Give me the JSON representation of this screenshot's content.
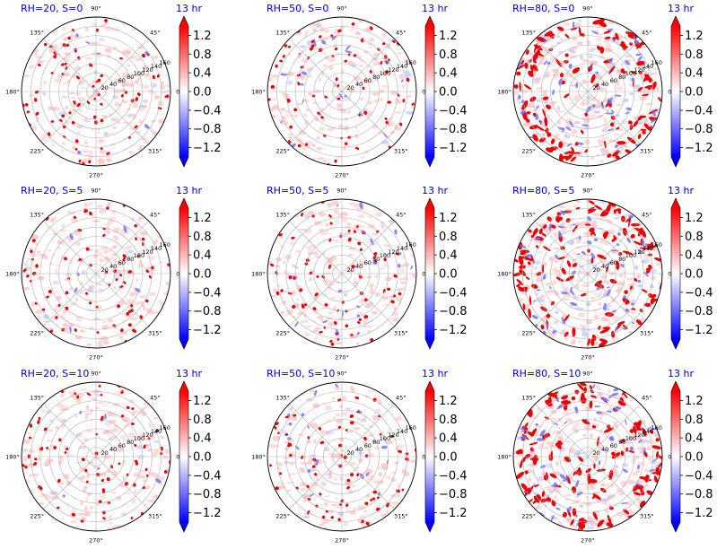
{
  "chart_data": {
    "type": "heatmap",
    "projection": "polar",
    "grid": true,
    "colormap": "bwr",
    "colors": {
      "positive": "#ff0000",
      "zero": "#ffffff",
      "negative": "#0000ff",
      "title": "#0000cc",
      "grid": "#b0b0b0"
    },
    "angle_ticks": [
      "90°",
      "45°",
      "0°",
      "315°",
      "270°",
      "225°",
      "180°",
      "135°"
    ],
    "radial_ticks": [
      "20",
      "40",
      "60",
      "80",
      "100",
      "120",
      "140",
      "160"
    ],
    "rlim": [
      0,
      160
    ],
    "colorbar": {
      "ticks": [
        "1.2",
        "0.8",
        "0.4",
        "0.0",
        "−0.4",
        "−0.8",
        "−1.2"
      ],
      "range": [
        -1.4,
        1.4
      ],
      "extend": "both"
    },
    "time_label": "13 hr",
    "panels": [
      {
        "label": "RH=20, S=0",
        "rh": 20,
        "s": 0
      },
      {
        "label": "RH=50, S=0",
        "rh": 50,
        "s": 0
      },
      {
        "label": "RH=80, S=0",
        "rh": 80,
        "s": 0
      },
      {
        "label": "RH=20, S=5",
        "rh": 20,
        "s": 5
      },
      {
        "label": "RH=50, S=5",
        "rh": 50,
        "s": 5
      },
      {
        "label": "RH=80, S=5",
        "rh": 80,
        "s": 5
      },
      {
        "label": "RH=20, S=10",
        "rh": 20,
        "s": 10
      },
      {
        "label": "RH=50, S=10",
        "rh": 50,
        "s": 10
      },
      {
        "label": "RH=80, S=10",
        "rh": 80,
        "s": 10
      }
    ]
  }
}
